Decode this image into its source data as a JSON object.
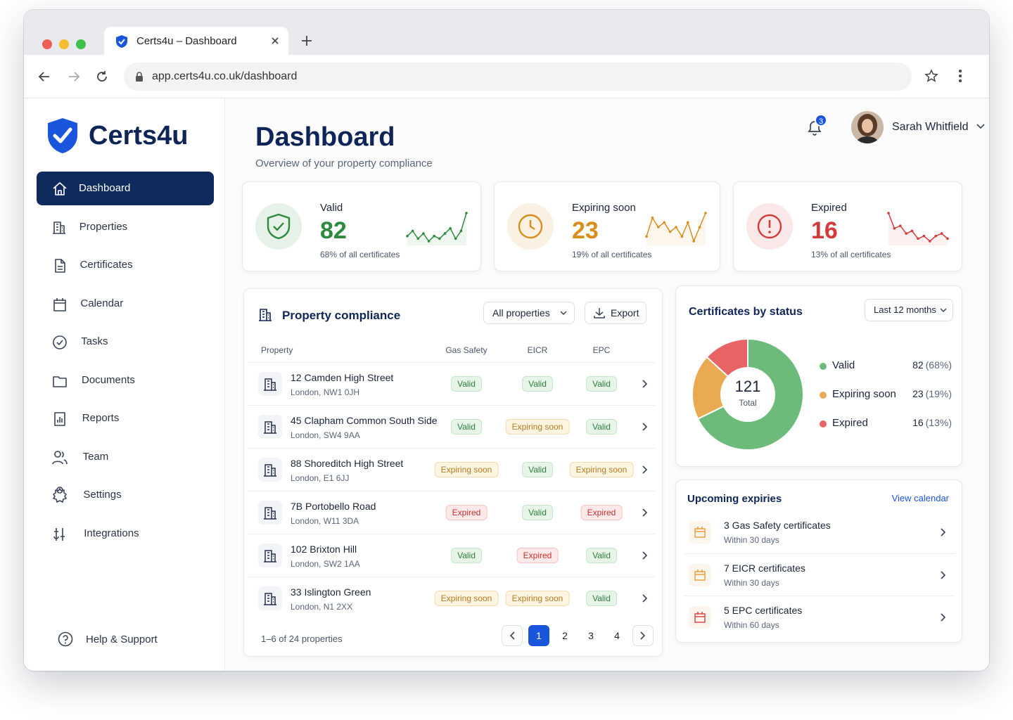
{
  "browser": {
    "tab_title": "Certs4u – Dashboard",
    "url": "app.certs4u.co.uk/dashboard"
  },
  "sidebar": {
    "brand": "Certs4u",
    "selected": 0,
    "nav": [
      "Dashboard",
      "Properties",
      "Certificates",
      "Calendar",
      "Tasks",
      "Documents",
      "Reports",
      "Team",
      "Settings",
      "Integrations"
    ],
    "help": "Help & Support"
  },
  "header": {
    "title": "Dashboard",
    "subtitle": "Overview of your property compliance",
    "notifications": 3,
    "user": "Sarah Whitfield"
  },
  "stats": [
    {
      "label": "Valid",
      "value": 82,
      "note": "68% of all certificates",
      "color": "#2e8b3e",
      "trend": [
        6,
        8,
        5,
        7,
        4,
        6,
        5,
        7,
        9,
        5,
        8,
        15
      ]
    },
    {
      "label": "Expiring soon",
      "value": 23,
      "note": "19% of all certificates",
      "color": "#d98e1c",
      "trend": [
        5,
        9,
        7,
        8,
        6,
        7,
        5,
        8,
        4,
        7,
        10
      ]
    },
    {
      "label": "Expired",
      "value": 16,
      "note": "13% of all certificates",
      "color": "#d33b3b",
      "trend": [
        12,
        6,
        7,
        4,
        5,
        2,
        3,
        1,
        3,
        4,
        2
      ]
    }
  ],
  "compliance": {
    "title": "Property compliance",
    "filter": "All properties",
    "export": "Export",
    "columns": [
      "Property",
      "Gas Safety",
      "EICR",
      "EPC"
    ],
    "rows": [
      {
        "name": "12 Camden High Street",
        "address": "London, NW1 0JH",
        "statuses": [
          "Valid",
          "Valid",
          "Valid"
        ]
      },
      {
        "name": "45 Clapham Common South Side",
        "address": "London, SW4 9AA",
        "statuses": [
          "Valid",
          "Expiring soon",
          "Valid"
        ]
      },
      {
        "name": "88 Shoreditch High Street",
        "address": "London, E1 6JJ",
        "statuses": [
          "Expiring soon",
          "Valid",
          "Expiring soon"
        ]
      },
      {
        "name": "7B Portobello Road",
        "address": "London, W11 3DA",
        "statuses": [
          "Expired",
          "Valid",
          "Expired"
        ]
      },
      {
        "name": "102 Brixton Hill",
        "address": "London, SW2 1AA",
        "statuses": [
          "Valid",
          "Expired",
          "Valid"
        ]
      },
      {
        "name": "33 Islington Green",
        "address": "London, N1 2XX",
        "statuses": [
          "Expiring soon",
          "Expiring soon",
          "Valid"
        ]
      }
    ],
    "summary": "1–6 of 24 properties",
    "pages": [
      1,
      2,
      3,
      4
    ],
    "current_page": 1
  },
  "status_chart": {
    "type": "donut",
    "title": "Certificates by status",
    "period": "Last 12 months",
    "total": 121,
    "total_label": "Total",
    "segments": [
      {
        "name": "Valid",
        "value": 82,
        "percent_label": "(68%)",
        "color": "#6cbb7a"
      },
      {
        "name": "Expiring soon",
        "value": 23,
        "percent_label": "(19%)",
        "color": "#e9aa52"
      },
      {
        "name": "Expired",
        "value": 16,
        "percent_label": "(13%)",
        "color": "#e86464"
      }
    ]
  },
  "upcoming": {
    "title": "Upcoming expiries",
    "link": "View calendar",
    "items": [
      {
        "title": "3 Gas Safety certificates",
        "due": "Within 30 days",
        "color": "#e9a23b"
      },
      {
        "title": "7 EICR certificates",
        "due": "Within 30 days",
        "color": "#e9a23b"
      },
      {
        "title": "5 EPC certificates",
        "due": "Within 60 days",
        "color": "#d94a4a"
      }
    ]
  }
}
